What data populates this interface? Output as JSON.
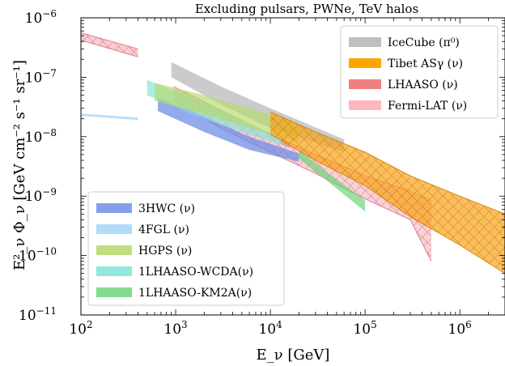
{
  "chart_data": {
    "type": "area",
    "title": "Excluding pulsars, PWNe, TeV halos",
    "xlabel": "E_ν [GeV]",
    "ylabel": "E²_ν Φ_ν [GeV cm⁻² s⁻¹ sr⁻¹]",
    "xscale": "log",
    "yscale": "log",
    "xlim": [
      100,
      3000000
    ],
    "ylim": [
      1e-11,
      1e-06
    ],
    "x_ticks": [
      {
        "value": 100,
        "base": "10",
        "exp": "2"
      },
      {
        "value": 1000,
        "base": "10",
        "exp": "3"
      },
      {
        "value": 10000,
        "base": "10",
        "exp": "4"
      },
      {
        "value": 100000,
        "base": "10",
        "exp": "5"
      },
      {
        "value": 1000000,
        "base": "10",
        "exp": "6"
      }
    ],
    "y_ticks": [
      {
        "value": 1e-11,
        "base": "10",
        "exp": "−11"
      },
      {
        "value": 1e-10,
        "base": "10",
        "exp": "−10"
      },
      {
        "value": 1e-09,
        "base": "10",
        "exp": "−9"
      },
      {
        "value": 1e-08,
        "base": "10",
        "exp": "−8"
      },
      {
        "value": 1e-07,
        "base": "10",
        "exp": "−7"
      },
      {
        "value": 1e-06,
        "base": "10",
        "exp": "−6"
      }
    ],
    "legends": [
      {
        "position": "upper-right",
        "items": [
          "IceCube (π⁰)",
          "Tibet ASγ (ν)",
          "LHAASO (ν)",
          "Fermi-LAT (ν)"
        ]
      },
      {
        "position": "lower-left",
        "items": [
          "3HWC (ν)",
          "4FGL (ν)",
          "HGPS (ν)",
          "1LHAASO-WCDA(ν)",
          "1LHAASO-KM2A(ν)"
        ]
      }
    ],
    "series": [
      {
        "name": "4FGL (ν)",
        "kind": "band",
        "color": "#a8d8f8",
        "opacity": 0.8,
        "hatch": false,
        "x": [
          100,
          400
        ],
        "upper": [
          2.45e-08,
          2.1e-08
        ],
        "lower": [
          2.25e-08,
          1.9e-08
        ]
      },
      {
        "name": "Fermi-LAT (ν)",
        "kind": "band",
        "color": "#f4a3ae",
        "opacity": 0.55,
        "hatch": true,
        "x": [
          100,
          400
        ],
        "upper": [
          5.6e-07,
          3e-07
        ],
        "lower": [
          4.2e-07,
          2.2e-07
        ]
      },
      {
        "name": "Fermi-LAT (ν)",
        "kind": "band",
        "color": "#f4a3ae",
        "opacity": 0.5,
        "hatch": true,
        "x": [
          950,
          3000,
          10000,
          30000,
          100000,
          300000,
          500000
        ],
        "upper": [
          7e-08,
          2.8e-08,
          1.1e-08,
          5e-09,
          2.2e-09,
          1.2e-09,
          8.5e-10
        ],
        "lower": [
          4e-08,
          1.4e-08,
          5.5e-09,
          2.4e-09,
          9e-10,
          4e-10,
          8e-11
        ]
      },
      {
        "name": "IceCube (π⁰)",
        "kind": "band",
        "color": "#a9a9a9",
        "opacity": 0.6,
        "hatch": false,
        "x": [
          900,
          3000,
          10000,
          60000
        ],
        "upper": [
          1.8e-07,
          7e-08,
          3e-08,
          9e-09
        ],
        "lower": [
          1e-07,
          3.5e-08,
          1.4e-08,
          5.5e-09
        ]
      },
      {
        "name": "3HWC (ν)",
        "kind": "band",
        "color": "#6f8ee6",
        "opacity": 0.75,
        "hatch": false,
        "x": [
          650,
          2000,
          6000,
          20000
        ],
        "upper": [
          4.6e-08,
          2.2e-08,
          1e-08,
          5.2e-09
        ],
        "lower": [
          2.7e-08,
          1.2e-08,
          6e-09,
          3.8e-09
        ]
      },
      {
        "name": "1LHAASO-WCDA(ν)",
        "kind": "band",
        "color": "#7fe3d8",
        "opacity": 0.65,
        "hatch": false,
        "x": [
          500,
          2000,
          5000,
          16000
        ],
        "upper": [
          9e-08,
          3.8e-08,
          1.9e-08,
          8e-09
        ],
        "lower": [
          5e-08,
          2e-08,
          1.2e-08,
          6.5e-09
        ]
      },
      {
        "name": "HGPS (ν)",
        "kind": "band",
        "color": "#b5d86a",
        "opacity": 0.65,
        "hatch": false,
        "x": [
          600,
          2000,
          6000,
          20000
        ],
        "upper": [
          8e-08,
          5e-08,
          3e-08,
          1.6e-08
        ],
        "lower": [
          4e-08,
          2.4e-08,
          1.4e-08,
          8e-09
        ]
      },
      {
        "name": "1LHAASO-KM2A(ν)",
        "kind": "band",
        "color": "#6fd47a",
        "opacity": 0.7,
        "hatch": false,
        "x": [
          20000,
          40000,
          100000
        ],
        "upper": [
          6e-09,
          2.5e-09,
          8.5e-10
        ],
        "lower": [
          4.3e-09,
          1.8e-09,
          5.5e-10
        ]
      },
      {
        "name": "LHAASO (ν)",
        "kind": "band",
        "color": "#f08080",
        "opacity": 0.6,
        "hatch": false,
        "x": [
          13000,
          16000
        ],
        "upper": [
          1e-08,
          8e-09
        ],
        "lower": [
          7.5e-09,
          6.5e-09
        ]
      },
      {
        "name": "Tibet ASγ (ν)",
        "kind": "band",
        "color": "#f9a21a",
        "opacity": 0.7,
        "hatch": true,
        "x": [
          10000,
          30000,
          100000,
          300000,
          1000000,
          3000000
        ],
        "upper": [
          2.6e-08,
          1.2e-08,
          5.5e-09,
          2.2e-09,
          1e-09,
          5e-10
        ],
        "lower": [
          1.1e-08,
          4e-09,
          1.5e-09,
          4.5e-10,
          1.5e-10,
          5e-11
        ]
      }
    ],
    "legend_styles": {
      "IceCube (π⁰)": {
        "color": "#a9a9a9",
        "opacity": 0.75
      },
      "Tibet ASγ (ν)": {
        "color": "#ffa500",
        "opacity": 1.0
      },
      "LHAASO (ν)": {
        "color": "#f08080",
        "opacity": 1.0
      },
      "Fermi-LAT (ν)": {
        "color": "#ffb6c1",
        "opacity": 1.0
      },
      "3HWC (ν)": {
        "color": "#6f8ee6",
        "opacity": 0.85
      },
      "4FGL (ν)": {
        "color": "#a8d8f8",
        "opacity": 0.9
      },
      "HGPS (ν)": {
        "color": "#b5d86a",
        "opacity": 0.85
      },
      "1LHAASO-WCDA(ν)": {
        "color": "#7fe3d8",
        "opacity": 0.85
      },
      "1LHAASO-KM2A(ν)": {
        "color": "#6fd47a",
        "opacity": 0.85
      }
    }
  }
}
